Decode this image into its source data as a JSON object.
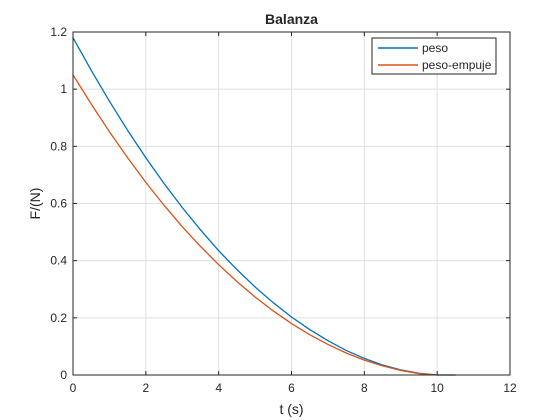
{
  "chart_data": {
    "type": "line",
    "title": "Balanza",
    "xlabel": "t (s)",
    "ylabel": "F/(N)",
    "xlim": [
      0,
      12
    ],
    "ylim": [
      0,
      1.2
    ],
    "xticks": [
      0,
      2,
      4,
      6,
      8,
      10,
      12
    ],
    "yticks": [
      0,
      0.2,
      0.4,
      0.6,
      0.8,
      1,
      1.2
    ],
    "grid": true,
    "legend_position": "top-right",
    "series": [
      {
        "name": "peso",
        "color": "#0072BD",
        "x": [
          0,
          0.5,
          1,
          1.5,
          2,
          2.5,
          3,
          3.5,
          4,
          4.5,
          5,
          5.5,
          6,
          6.5,
          7,
          7.5,
          8,
          8.5,
          9,
          9.5,
          10,
          10.5
        ],
        "y": [
          1.18,
          1.066,
          0.958,
          0.856,
          0.76,
          0.67,
          0.586,
          0.508,
          0.435,
          0.369,
          0.308,
          0.253,
          0.203,
          0.159,
          0.12,
          0.086,
          0.058,
          0.035,
          0.018,
          0.006,
          0.0,
          0.0
        ]
      },
      {
        "name": "peso-empuje",
        "color": "#D95319",
        "x": [
          0,
          0.5,
          1,
          1.5,
          2,
          2.5,
          3,
          3.5,
          4,
          4.5,
          5,
          5.5,
          6,
          6.5,
          7,
          7.5,
          8,
          8.5,
          9,
          9.5,
          10,
          10.5
        ],
        "y": [
          1.05,
          0.948,
          0.851,
          0.76,
          0.674,
          0.594,
          0.519,
          0.45,
          0.386,
          0.327,
          0.273,
          0.224,
          0.18,
          0.141,
          0.107,
          0.077,
          0.052,
          0.032,
          0.016,
          0.005,
          0.0,
          0.0
        ]
      }
    ]
  }
}
